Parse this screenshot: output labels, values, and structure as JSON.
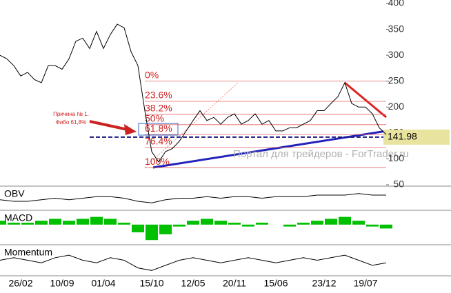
{
  "chart_data": [
    {
      "type": "line",
      "categories": [
        null,
        null,
        null,
        "26/02",
        null,
        null,
        null,
        null,
        null,
        "10/09",
        null,
        null,
        null,
        null,
        null,
        "01/04",
        null,
        null,
        null,
        null,
        null,
        null,
        "15/10",
        null,
        null,
        null,
        null,
        null,
        "12/05",
        null,
        null,
        null,
        null,
        null,
        "20/11",
        null,
        null,
        null,
        null,
        null,
        "15/06",
        null,
        null,
        null,
        null,
        null,
        null,
        "23/12",
        null,
        null,
        null,
        null,
        null,
        "19/07",
        null,
        null,
        null
      ],
      "series": [
        {
          "color": "#000000",
          "values": [
            300,
            293,
            280,
            260,
            267,
            253,
            247,
            280,
            280,
            273,
            293,
            327,
            333,
            313,
            346,
            313,
            340,
            360,
            353,
            307,
            280,
            193,
            114,
            94,
            114,
            120,
            134,
            154,
            174,
            193,
            174,
            180,
            167,
            180,
            187,
            167,
            174,
            187,
            167,
            174,
            154,
            154,
            160,
            160,
            167,
            174,
            193,
            193,
            207,
            220,
            247,
            207,
            200,
            200,
            187,
            160,
            147
          ]
        }
      ],
      "ylim": [
        50,
        400
      ],
      "yticks": [
        50,
        100,
        150,
        200,
        250,
        300,
        350,
        400
      ],
      "fib_levels": [
        {
          "label": "0%",
          "value": 250
        },
        {
          "label": "23.6%",
          "value": 211
        },
        {
          "label": "38.2%",
          "value": 186
        },
        {
          "label": "50%",
          "value": 166
        },
        {
          "label": "61.8%",
          "value": 147
        },
        {
          "label": "76.4%",
          "value": 122
        },
        {
          "label": "100%",
          "value": 83
        }
      ],
      "current_price": 141.98,
      "annotation": [
        "Причина № 1.",
        "Фибо 61,8%"
      ],
      "watermark": "Портал для трейдеров - ForTrader.ru"
    },
    {
      "type": "line",
      "title": "OBV",
      "color": "#000000",
      "ylim": [
        0,
        12
      ],
      "values": [
        5,
        4,
        4,
        5,
        6,
        5,
        6,
        7,
        7,
        6,
        4,
        3,
        5,
        6,
        6,
        7,
        6,
        7,
        7,
        6,
        7,
        7,
        7,
        8,
        8,
        8,
        9,
        8,
        8
      ]
    },
    {
      "type": "bar",
      "title": "MACD",
      "color": "#00c000",
      "ylim": [
        -9,
        6
      ],
      "values": [
        2,
        1,
        1,
        2,
        3,
        2,
        3,
        4,
        3,
        1,
        -4,
        -8,
        -5,
        -1,
        2,
        3,
        2,
        1,
        -1,
        1,
        0,
        -1,
        1,
        2,
        3,
        4,
        2,
        -1,
        -2
      ]
    },
    {
      "type": "line",
      "title": "Momentum",
      "color": "#000000",
      "ylim": [
        0,
        10
      ],
      "values": [
        5,
        6,
        5,
        4,
        6,
        7,
        5,
        4,
        6,
        5,
        2,
        1,
        3,
        5,
        6,
        5,
        4,
        5,
        6,
        5,
        4,
        5,
        6,
        5,
        6,
        7,
        5,
        3,
        4
      ]
    }
  ]
}
